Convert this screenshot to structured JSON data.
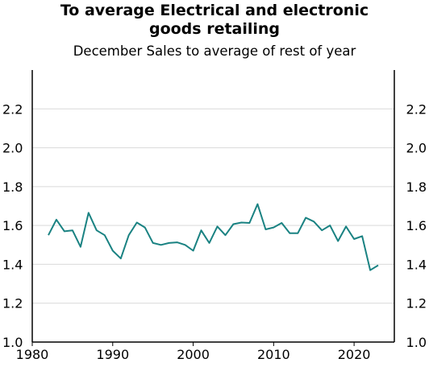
{
  "chart_data": {
    "type": "line",
    "title_lines": [
      "To average Electrical and electronic",
      "goods retailing"
    ],
    "subtitle": "December Sales to average of rest of year",
    "xlabel": "",
    "ylabel": "",
    "xlim": [
      1980,
      2025
    ],
    "ylim": [
      1.0,
      2.4
    ],
    "x_ticks": [
      1980,
      1990,
      2000,
      2010,
      2020
    ],
    "y_ticks": [
      1.0,
      1.2,
      1.4,
      1.6,
      1.8,
      2.0,
      2.2
    ],
    "y_tick_labels": [
      "1.0",
      "1.2",
      "1.4",
      "1.6",
      "1.8",
      "2.0",
      "2.2"
    ],
    "grid": "horizontal",
    "line_color": "#1a8282",
    "series": [
      {
        "x": [
          1982,
          1983,
          1984,
          1985,
          1986,
          1987,
          1988,
          1989,
          1990,
          1991,
          1992,
          1993,
          1994,
          1995,
          1996,
          1997,
          1998,
          1999,
          2000,
          2001,
          2002,
          2003,
          2004,
          2005,
          2006,
          2007,
          2008,
          2009,
          2010,
          2011,
          2012,
          2013,
          2014,
          2015,
          2016,
          2017,
          2018,
          2019,
          2020,
          2021,
          2022,
          2023
        ],
        "values": [
          1.55,
          1.63,
          1.57,
          1.575,
          1.49,
          1.665,
          1.575,
          1.55,
          1.47,
          1.43,
          1.55,
          1.615,
          1.59,
          1.51,
          1.5,
          1.51,
          1.513,
          1.5,
          1.47,
          1.575,
          1.51,
          1.595,
          1.55,
          1.607,
          1.615,
          1.613,
          1.71,
          1.58,
          1.59,
          1.613,
          1.56,
          1.56,
          1.64,
          1.62,
          1.575,
          1.6,
          1.52,
          1.595,
          1.53,
          1.545,
          1.37,
          1.395
        ]
      }
    ]
  }
}
